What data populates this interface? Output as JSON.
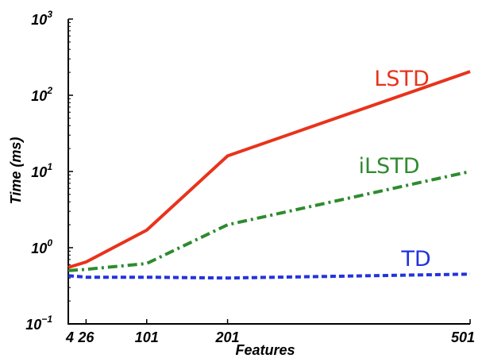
{
  "chart_data": {
    "type": "line",
    "xlabel": "Features",
    "ylabel": "Time (ms)",
    "xlim": [
      4,
      501
    ],
    "ylim": [
      0.1,
      1000
    ],
    "yscale": "log",
    "grid": false,
    "x_ticks": [
      4,
      26,
      101,
      201,
      501
    ],
    "y_ticks": [
      {
        "value": 0.1,
        "base": "10",
        "exp": "−1"
      },
      {
        "value": 1,
        "base": "10",
        "exp": "0"
      },
      {
        "value": 10,
        "base": "10",
        "exp": "1"
      },
      {
        "value": 100,
        "base": "10",
        "exp": "2"
      },
      {
        "value": 1000,
        "base": "10",
        "exp": "3"
      }
    ],
    "series": [
      {
        "name": "LSTD",
        "color": "#e8331b",
        "dash": "solid",
        "x": [
          4,
          26,
          101,
          201,
          501
        ],
        "y": [
          0.55,
          0.65,
          1.7,
          16,
          205
        ]
      },
      {
        "name": "iLSTD",
        "color": "#2e8b2e",
        "dash": "dashdot",
        "x": [
          4,
          26,
          101,
          201,
          501
        ],
        "y": [
          0.5,
          0.52,
          0.62,
          2.0,
          10
        ]
      },
      {
        "name": "TD",
        "color": "#2233dd",
        "dash": "dotted",
        "x": [
          4,
          26,
          101,
          201,
          501
        ],
        "y": [
          0.43,
          0.41,
          0.41,
          0.4,
          0.45
        ]
      }
    ]
  }
}
